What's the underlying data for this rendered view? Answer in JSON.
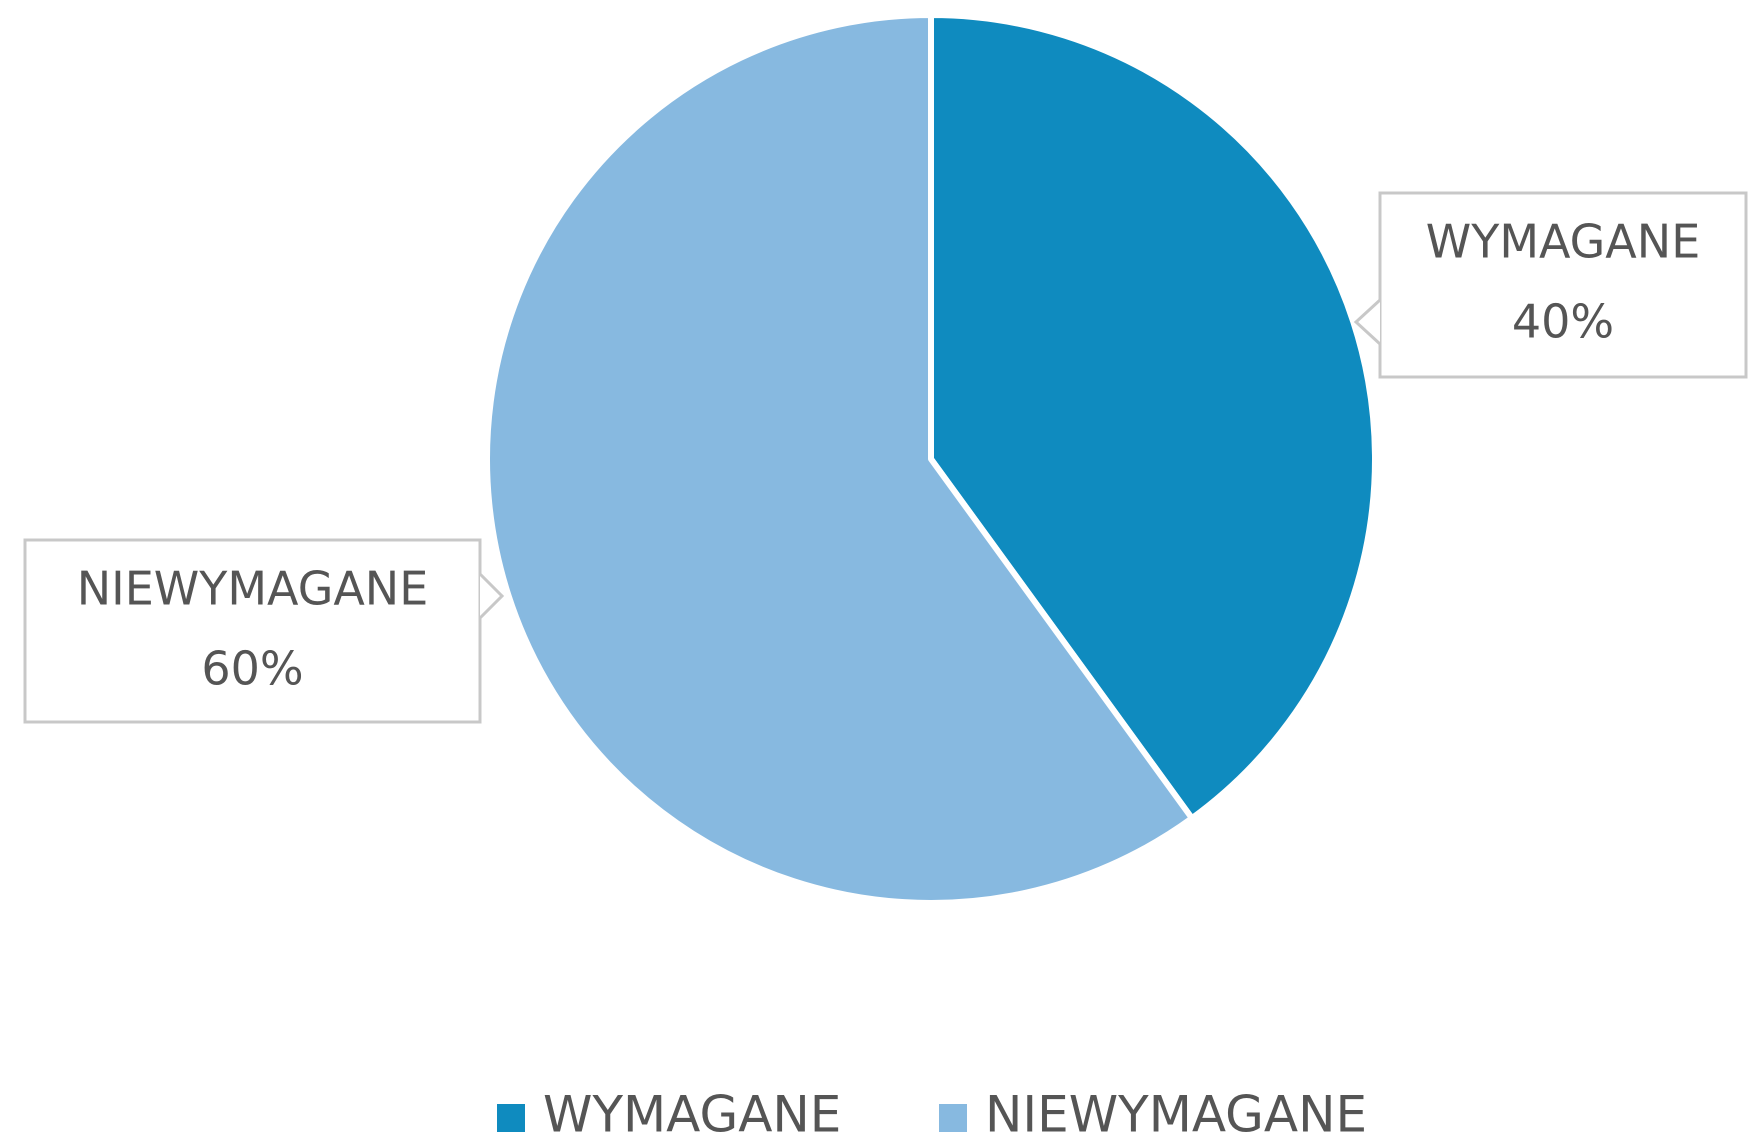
{
  "chart_data": {
    "type": "pie",
    "categories": [
      "WYMAGANE",
      "NIEWYMAGANE"
    ],
    "values": [
      40,
      60
    ],
    "value_labels": [
      "40%",
      "60%"
    ],
    "colors": [
      "#0f8bbf",
      "#87b9e0"
    ],
    "legend": "bottom"
  }
}
